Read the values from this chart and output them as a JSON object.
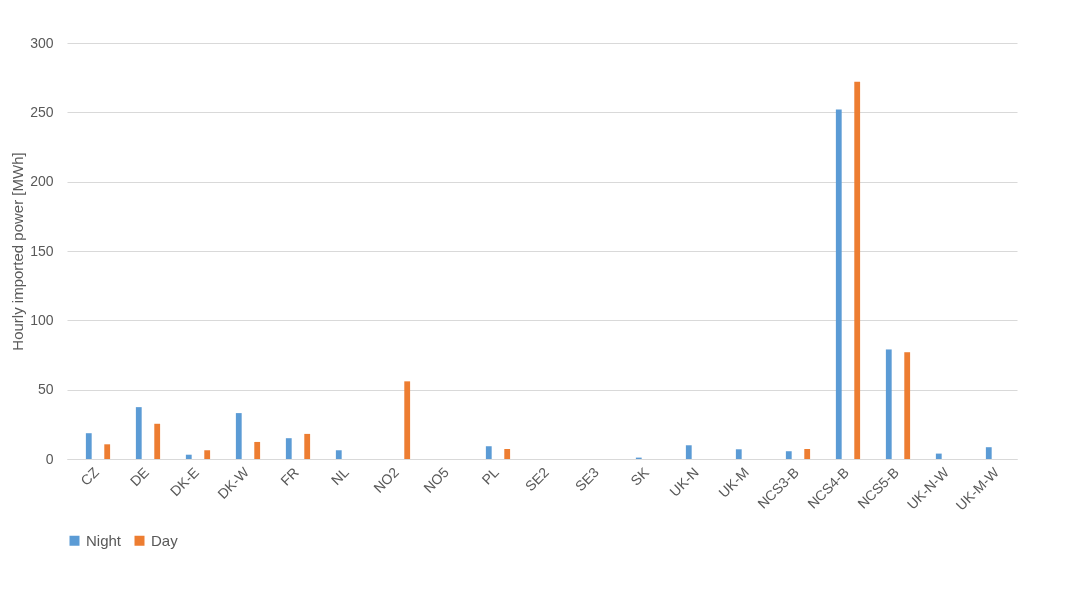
{
  "chart_data": {
    "type": "bar",
    "ylabel": "Hourly imported power [MWh]",
    "categories": [
      "CZ",
      "DE",
      "DK-E",
      "DK-W",
      "FR",
      "NL",
      "NO2",
      "NO5",
      "PL",
      "SE2",
      "SE3",
      "SK",
      "UK-N",
      "UK-M",
      "NCS3-B",
      "NCS4-B",
      "NCS5-B",
      "UK-N-W",
      "UK-M-W"
    ],
    "series": [
      {
        "name": "Night",
        "color": "#5b9bd5",
        "values": [
          18.6,
          37.4,
          3.1,
          33.1,
          15,
          6.3,
          0,
          0,
          9.2,
          0,
          0,
          1,
          9.9,
          7,
          5.6,
          252,
          79,
          3.9,
          8.5
        ]
      },
      {
        "name": "Day",
        "color": "#ed7d31",
        "values": [
          10.6,
          25.4,
          6.3,
          12.3,
          18.1,
          0,
          56,
          0,
          7.2,
          0,
          0,
          0,
          0,
          0,
          7.2,
          272,
          77,
          0,
          0
        ]
      }
    ],
    "ylim": [
      0,
      300
    ],
    "yticks": [
      0,
      50,
      100,
      150,
      200,
      250,
      300
    ],
    "grid": "y",
    "legend": "bottom"
  }
}
